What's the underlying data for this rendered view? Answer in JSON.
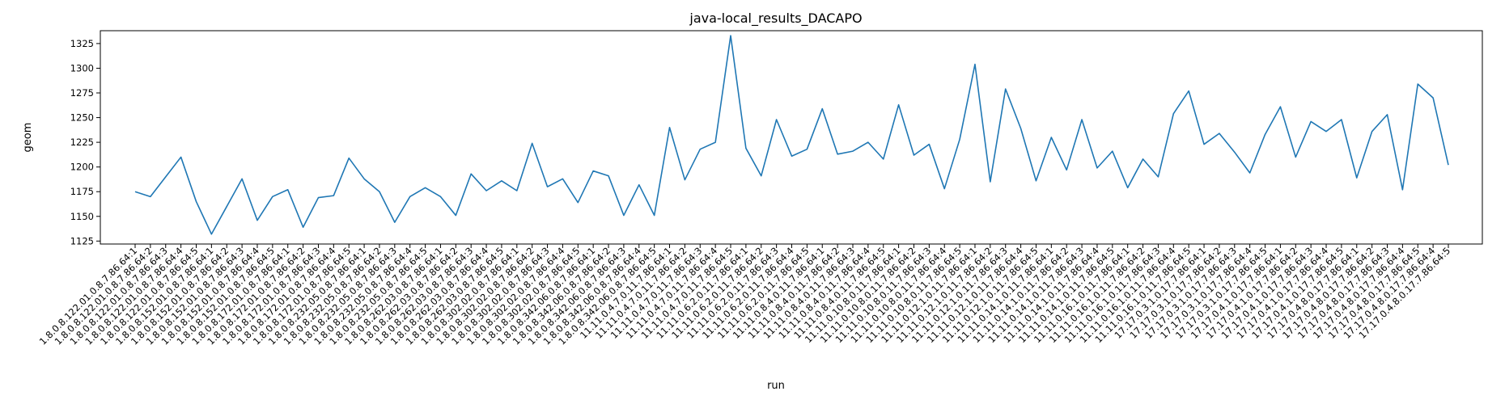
{
  "chart_data": {
    "type": "line",
    "title": "java-local_results_DACAPO",
    "xlabel": "run",
    "ylabel": "geom",
    "ylim": [
      1122,
      1338
    ],
    "yticks": [
      1125,
      1150,
      1175,
      1200,
      1225,
      1250,
      1275,
      1300,
      1325
    ],
    "grid": false,
    "series": [
      {
        "color": "#1f77b4",
        "values": [
          1175,
          1170,
          1190,
          1210,
          1165,
          1132,
          1160,
          1188,
          1146,
          1170,
          1177,
          1139,
          1169,
          1171,
          1209,
          1188,
          1175,
          1144,
          1170,
          1179,
          1170,
          1151,
          1193,
          1176,
          1186,
          1176,
          1224,
          1180,
          1188,
          1164,
          1196,
          1191,
          1151,
          1182,
          1151,
          1240,
          1187,
          1218,
          1225,
          1333,
          1219,
          1191,
          1248,
          1211,
          1218,
          1259,
          1213,
          1216,
          1225,
          1208,
          1263,
          1212,
          1223,
          1178,
          1228,
          1304,
          1185,
          1279,
          1239,
          1186,
          1230,
          1197,
          1248,
          1199,
          1216,
          1179,
          1208,
          1190,
          1254,
          1277,
          1223,
          1234,
          1215,
          1194,
          1233,
          1261,
          1210,
          1246,
          1236,
          1248,
          1189,
          1236,
          1253,
          1177,
          1284,
          1270,
          1202
        ]
      }
    ],
    "categories": [
      "1.8.0.8.122.01.0.8.7.86.64:1",
      "1.8.0.8.122.01.0.8.7.86.64:2",
      "1.8.0.8.122.01.0.8.7.86.64:3",
      "1.8.0.8.122.01.0.8.7.86.64:4",
      "1.8.0.8.122.01.0.8.7.86.64:5",
      "1.8.0.8.152.01.0.8.7.86.64:1",
      "1.8.0.8.152.01.0.8.7.86.64:2",
      "1.8.0.8.152.01.0.8.7.86.64:3",
      "1.8.0.8.152.01.0.8.7.86.64:4",
      "1.8.0.8.152.01.0.8.7.86.64:5",
      "1.8.0.8.172.01.0.8.7.86.64:1",
      "1.8.0.8.172.01.0.8.7.86.64:2",
      "1.8.0.8.172.01.0.8.7.86.64:3",
      "1.8.0.8.172.01.0.8.7.86.64:4",
      "1.8.0.8.172.01.0.8.7.86.64:5",
      "1.8.0.8.232.05.0.8.7.86.64:1",
      "1.8.0.8.232.05.0.8.7.86.64:2",
      "1.8.0.8.232.05.0.8.7.86.64:3",
      "1.8.0.8.232.05.0.8.7.86.64:4",
      "1.8.0.8.232.05.0.8.7.86.64:5",
      "1.8.0.8.262.03.0.8.7.86.64:1",
      "1.8.0.8.262.03.0.8.7.86.64:2",
      "1.8.0.8.262.03.0.8.7.86.64:3",
      "1.8.0.8.262.03.0.8.7.86.64:4",
      "1.8.0.8.262.03.0.8.7.86.64:5",
      "1.8.0.8.302.02.0.8.7.86.64:1",
      "1.8.0.8.302.02.0.8.7.86.64:2",
      "1.8.0.8.302.02.0.8.7.86.64:3",
      "1.8.0.8.302.02.0.8.7.86.64:4",
      "1.8.0.8.302.02.0.8.7.86.64:5",
      "1.8.0.8.342.06.0.8.7.86.64:1",
      "1.8.0.8.342.06.0.8.7.86.64:2",
      "1.8.0.8.342.06.0.8.7.86.64:3",
      "1.8.0.8.342.06.0.8.7.86.64:4",
      "1.8.0.8.342.06.0.8.7.86.64:5",
      "11.11.0.4.7.0.11.7.86.64:1",
      "11.11.0.4.7.0.11.7.86.64:2",
      "11.11.0.4.7.0.11.7.86.64:3",
      "11.11.0.4.7.0.11.7.86.64:4",
      "11.11.0.4.7.0.11.7.86.64:5",
      "11.11.0.6.2.0.11.7.86.64:1",
      "11.11.0.6.2.0.11.7.86.64:2",
      "11.11.0.6.2.0.11.7.86.64:3",
      "11.11.0.6.2.0.11.7.86.64:4",
      "11.11.0.6.2.0.11.7.86.64:5",
      "11.11.0.8.4.0.11.7.86.64:1",
      "11.11.0.8.4.0.11.7.86.64:2",
      "11.11.0.8.4.0.11.7.86.64:3",
      "11.11.0.8.4.0.11.7.86.64:4",
      "11.11.0.8.4.0.11.7.86.64:5",
      "11.11.0.10.8.0.11.7.86.64:1",
      "11.11.0.10.8.0.11.7.86.64:2",
      "11.11.0.10.8.0.11.7.86.64:3",
      "11.11.0.10.8.0.11.7.86.64:4",
      "11.11.0.10.8.0.11.7.86.64:5",
      "11.11.0.12.1.0.11.7.86.64:1",
      "11.11.0.12.1.0.11.7.86.64:2",
      "11.11.0.12.1.0.11.7.86.64:3",
      "11.11.0.12.1.0.11.7.86.64:4",
      "11.11.0.12.1.0.11.7.86.64:5",
      "11.11.0.14.1.0.11.7.86.64:1",
      "11.11.0.14.1.0.11.7.86.64:2",
      "11.11.0.14.1.0.11.7.86.64:3",
      "11.11.0.14.1.0.11.7.86.64:4",
      "11.11.0.14.1.0.11.7.86.64:5",
      "11.11.0.16.1.0.11.7.86.64:1",
      "11.11.0.16.1.0.11.7.86.64:2",
      "11.11.0.16.1.0.11.7.86.64:3",
      "11.11.0.16.1.0.11.7.86.64:4",
      "11.11.0.16.1.0.11.7.86.64:5",
      "17.17.0.3.1.0.17.7.86.64:1",
      "17.17.0.3.1.0.17.7.86.64:2",
      "17.17.0.3.1.0.17.7.86.64:3",
      "17.17.0.3.1.0.17.7.86.64:4",
      "17.17.0.3.1.0.17.7.86.64:5",
      "17.17.0.4.1.0.17.7.86.64:1",
      "17.17.0.4.1.0.17.7.86.64:2",
      "17.17.0.4.1.0.17.7.86.64:3",
      "17.17.0.4.1.0.17.7.86.64:4",
      "17.17.0.4.1.0.17.7.86.64:5",
      "17.17.0.4.8.0.17.7.86.64:1",
      "17.17.0.4.8.0.17.7.86.64:2",
      "17.17.0.4.8.0.17.7.86.64:3",
      "17.17.0.4.8.0.17.7.86.64:4",
      "17.17.0.4.8.0.17.7.86.64:5",
      "17.17.0.4.8.0.17.7.86.64:4",
      "17.17.0.4.8.0.17.7.86.64:5"
    ]
  }
}
